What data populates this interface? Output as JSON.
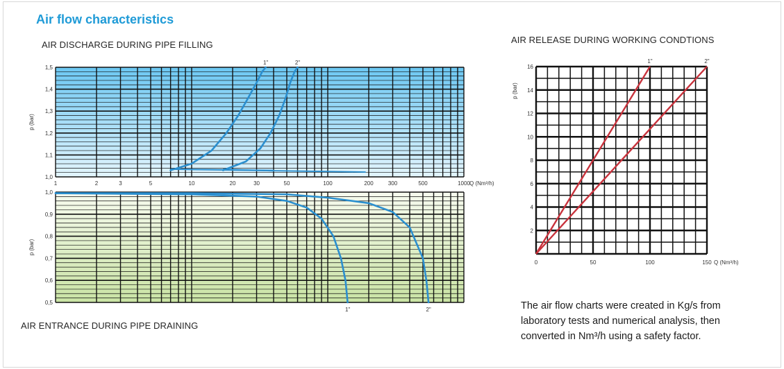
{
  "title": "Air flow characteristics",
  "labels": {
    "discharge": "AIR DISCHARGE DURING PIPE FILLING",
    "entrance": "AIR ENTRANCE DURING PIPE DRAINING",
    "release": "AIR RELEASE DURING WORKING CONDTIONS"
  },
  "note": "The air flow charts were created in Kg/s from laboratory tests and numerical analysis, then converted in Nm³/h using a safety factor.",
  "colors": {
    "blue_curve": "#2b8fcf",
    "red_curve": "#c8323c",
    "grid": "#111111"
  },
  "chart_data": [
    {
      "type": "line",
      "title": "AIR DISCHARGE DURING PIPE FILLING",
      "xscale": "log",
      "xlim": [
        1,
        1000
      ],
      "ylim": [
        1.0,
        1.5
      ],
      "ylabel": "p (bar)",
      "xlabel": "Q (Nm³/h)",
      "xticks": [
        1,
        2,
        3,
        5,
        10,
        20,
        30,
        50,
        100,
        200,
        300,
        500,
        1000
      ],
      "xtick_labels": [
        "1",
        "2",
        "3",
        "5",
        "10",
        "20",
        "30",
        "50",
        "100",
        "200",
        "300",
        "500",
        "1000"
      ],
      "yticks": [
        1.0,
        1.1,
        1.2,
        1.3,
        1.4,
        1.5
      ],
      "ytick_labels": [
        "1,0",
        "1,1",
        "1,2",
        "1,3",
        "1,4",
        "1,5"
      ],
      "series": [
        {
          "name": "1\"",
          "x": [
            7,
            10,
            14,
            18,
            22,
            26,
            30,
            33,
            35
          ],
          "y": [
            1.03,
            1.06,
            1.12,
            1.2,
            1.28,
            1.36,
            1.43,
            1.48,
            1.5
          ]
        },
        {
          "name": "2\"",
          "x": [
            17,
            25,
            32,
            38,
            44,
            49,
            53,
            57,
            60
          ],
          "y": [
            1.03,
            1.07,
            1.13,
            1.2,
            1.28,
            1.36,
            1.43,
            1.48,
            1.5
          ]
        }
      ],
      "background": "blue-gradient"
    },
    {
      "type": "line",
      "title": "AIR ENTRANCE DURING PIPE DRAINING",
      "xscale": "log",
      "xlim": [
        1,
        1000
      ],
      "ylim": [
        0.5,
        1.0
      ],
      "ylabel": "p (bar)",
      "yticks": [
        0.5,
        0.6,
        0.7,
        0.8,
        0.9,
        1.0
      ],
      "ytick_labels": [
        "0,5",
        "0,6",
        "0,7",
        "0,8",
        "0,9",
        "1,0"
      ],
      "series": [
        {
          "name": "1\"",
          "x": [
            1,
            10,
            30,
            50,
            70,
            90,
            110,
            125,
            135,
            140
          ],
          "y": [
            0.995,
            0.99,
            0.98,
            0.96,
            0.93,
            0.88,
            0.8,
            0.7,
            0.6,
            0.5
          ]
        },
        {
          "name": "2\"",
          "x": [
            1,
            10,
            50,
            100,
            200,
            300,
            400,
            500,
            530,
            550
          ],
          "y": [
            0.995,
            0.995,
            0.99,
            0.975,
            0.95,
            0.91,
            0.84,
            0.7,
            0.6,
            0.5
          ]
        }
      ],
      "background": "green-gradient"
    },
    {
      "type": "line",
      "title": "AIR RELEASE DURING WORKING CONDTIONS",
      "xlim": [
        0,
        150
      ],
      "ylim": [
        0,
        16
      ],
      "ylabel": "p (bar)",
      "xlabel": "Q (Nm³/h)",
      "xticks": [
        0,
        50,
        100,
        150
      ],
      "xtick_labels": [
        "0",
        "50",
        "100",
        "150"
      ],
      "yticks": [
        2,
        4,
        6,
        8,
        10,
        12,
        14,
        16
      ],
      "ytick_labels": [
        "2",
        "4",
        "6",
        "8",
        "10",
        "12",
        "14",
        "16"
      ],
      "series": [
        {
          "name": "1\"",
          "x": [
            0,
            100
          ],
          "y": [
            0,
            16
          ]
        },
        {
          "name": "2\"",
          "x": [
            0,
            150
          ],
          "y": [
            0,
            16
          ]
        }
      ]
    }
  ]
}
